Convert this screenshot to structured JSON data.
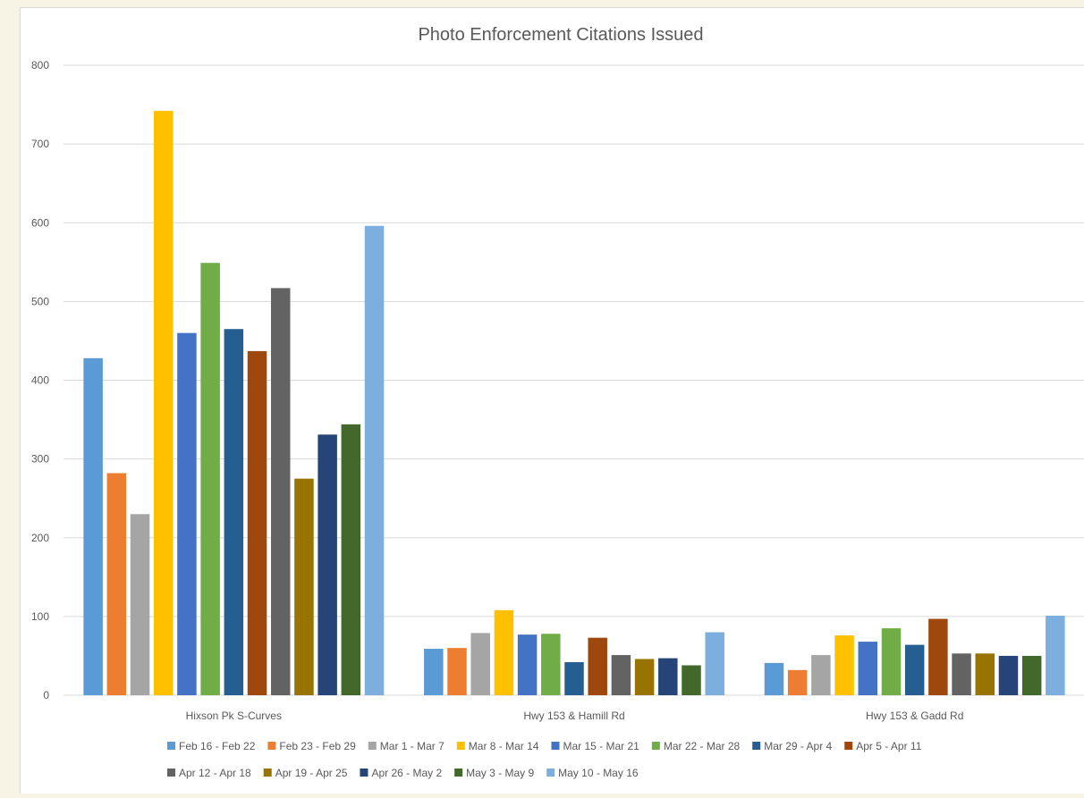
{
  "chart_data": {
    "type": "bar",
    "title": "Photo Enforcement Citations Issued",
    "xlabel": "",
    "ylabel": "",
    "ylim": [
      0,
      800
    ],
    "yticks": [
      0,
      100,
      200,
      300,
      400,
      500,
      600,
      700,
      800
    ],
    "grid": true,
    "legend_position": "bottom",
    "categories": [
      "Hixson Pk S-Curves",
      "Hwy 153 & Hamill Rd",
      "Hwy 153 & Gadd Rd"
    ],
    "series": [
      {
        "name": "Feb 16 - Feb 22",
        "color": "#5b9bd5",
        "values": [
          428,
          59,
          41
        ]
      },
      {
        "name": "Feb 23 - Feb 29",
        "color": "#ed7d31",
        "values": [
          282,
          60,
          32
        ]
      },
      {
        "name": "Mar 1 - Mar 7",
        "color": "#a5a5a5",
        "values": [
          230,
          79,
          51
        ]
      },
      {
        "name": "Mar 8 - Mar 14",
        "color": "#ffc000",
        "values": [
          742,
          108,
          76
        ]
      },
      {
        "name": "Mar 15 - Mar 21",
        "color": "#4472c4",
        "values": [
          460,
          77,
          68
        ]
      },
      {
        "name": "Mar 22 - Mar 28",
        "color": "#70ad47",
        "values": [
          549,
          78,
          85
        ]
      },
      {
        "name": "Mar 29 - Apr 4",
        "color": "#255e91",
        "values": [
          465,
          42,
          64
        ]
      },
      {
        "name": "Apr 5 - Apr 11",
        "color": "#9e480e",
        "values": [
          437,
          73,
          97
        ]
      },
      {
        "name": "Apr 12 - Apr 18",
        "color": "#636363",
        "values": [
          517,
          51,
          53
        ]
      },
      {
        "name": "Apr 19 - Apr 25",
        "color": "#997300",
        "values": [
          275,
          46,
          53
        ]
      },
      {
        "name": "Apr 26 - May 2",
        "color": "#264478",
        "values": [
          331,
          47,
          50
        ]
      },
      {
        "name": "May 3 - May 9",
        "color": "#43682b",
        "values": [
          344,
          38,
          50
        ]
      },
      {
        "name": "May 10 - May 16",
        "color": "#7cafdd",
        "values": [
          596,
          80,
          101
        ]
      }
    ]
  }
}
